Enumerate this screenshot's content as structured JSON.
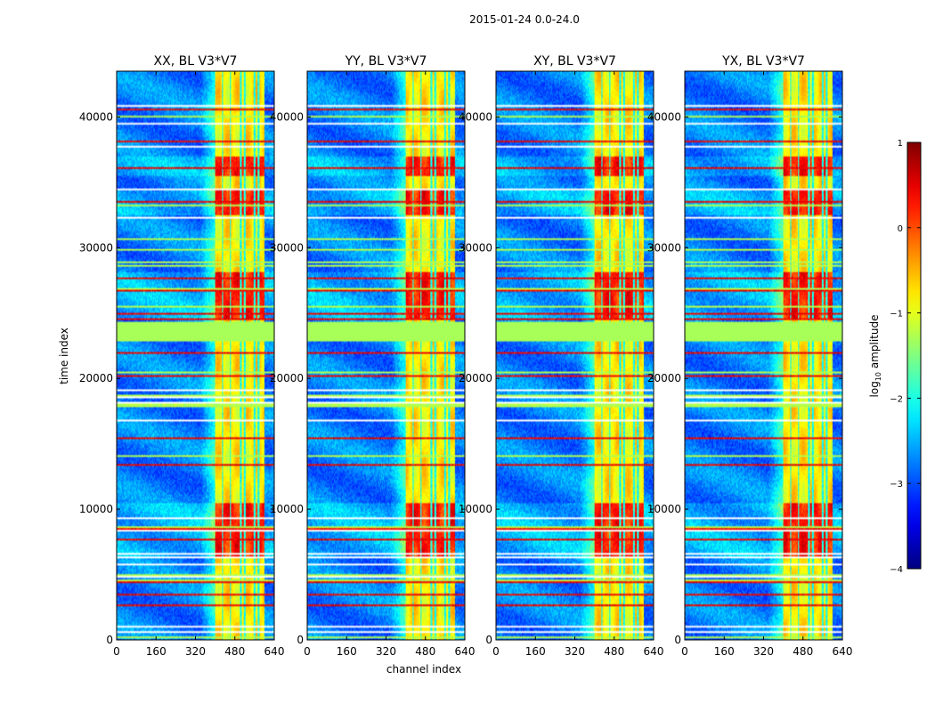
{
  "suptitle": "2015-01-24 0.0-24.0",
  "chart_data": {
    "type": "heatmap",
    "title": "2015-01-24 0.0-24.0",
    "panels": [
      {
        "title": "XX, BL V3*V7"
      },
      {
        "title": "YY, BL V3*V7"
      },
      {
        "title": "XY, BL V3*V7"
      },
      {
        "title": "YX, BL V3*V7"
      }
    ],
    "xlabel": "channel index",
    "ylabel": "time index",
    "xlim": [
      0,
      640
    ],
    "ylim": [
      0,
      43500
    ],
    "xticks": [
      0,
      160,
      320,
      480,
      640
    ],
    "yticks": [
      0,
      10000,
      20000,
      30000,
      40000
    ],
    "colorbar": {
      "label": "log10 amplitude",
      "label_base": "log",
      "label_sub": "10",
      "label_rest": " amplitude",
      "range": [
        -4,
        1
      ],
      "ticks": [
        1,
        0,
        -1,
        -2,
        -3,
        -4
      ],
      "tick_labels": [
        "1",
        "0",
        "−1",
        "−2",
        "−3",
        "−4"
      ],
      "colormap": "jet"
    },
    "features": {
      "rfi_channel_band": [
        400,
        600
      ],
      "high_amplitude_time_ranges": [
        [
          6300,
          10500
        ],
        [
          24500,
          28200
        ],
        [
          32500,
          34500
        ],
        [
          35500,
          37000
        ]
      ],
      "flagged_time_band": [
        22800,
        24300
      ],
      "flagged_time_band_value": -1.3
    }
  }
}
